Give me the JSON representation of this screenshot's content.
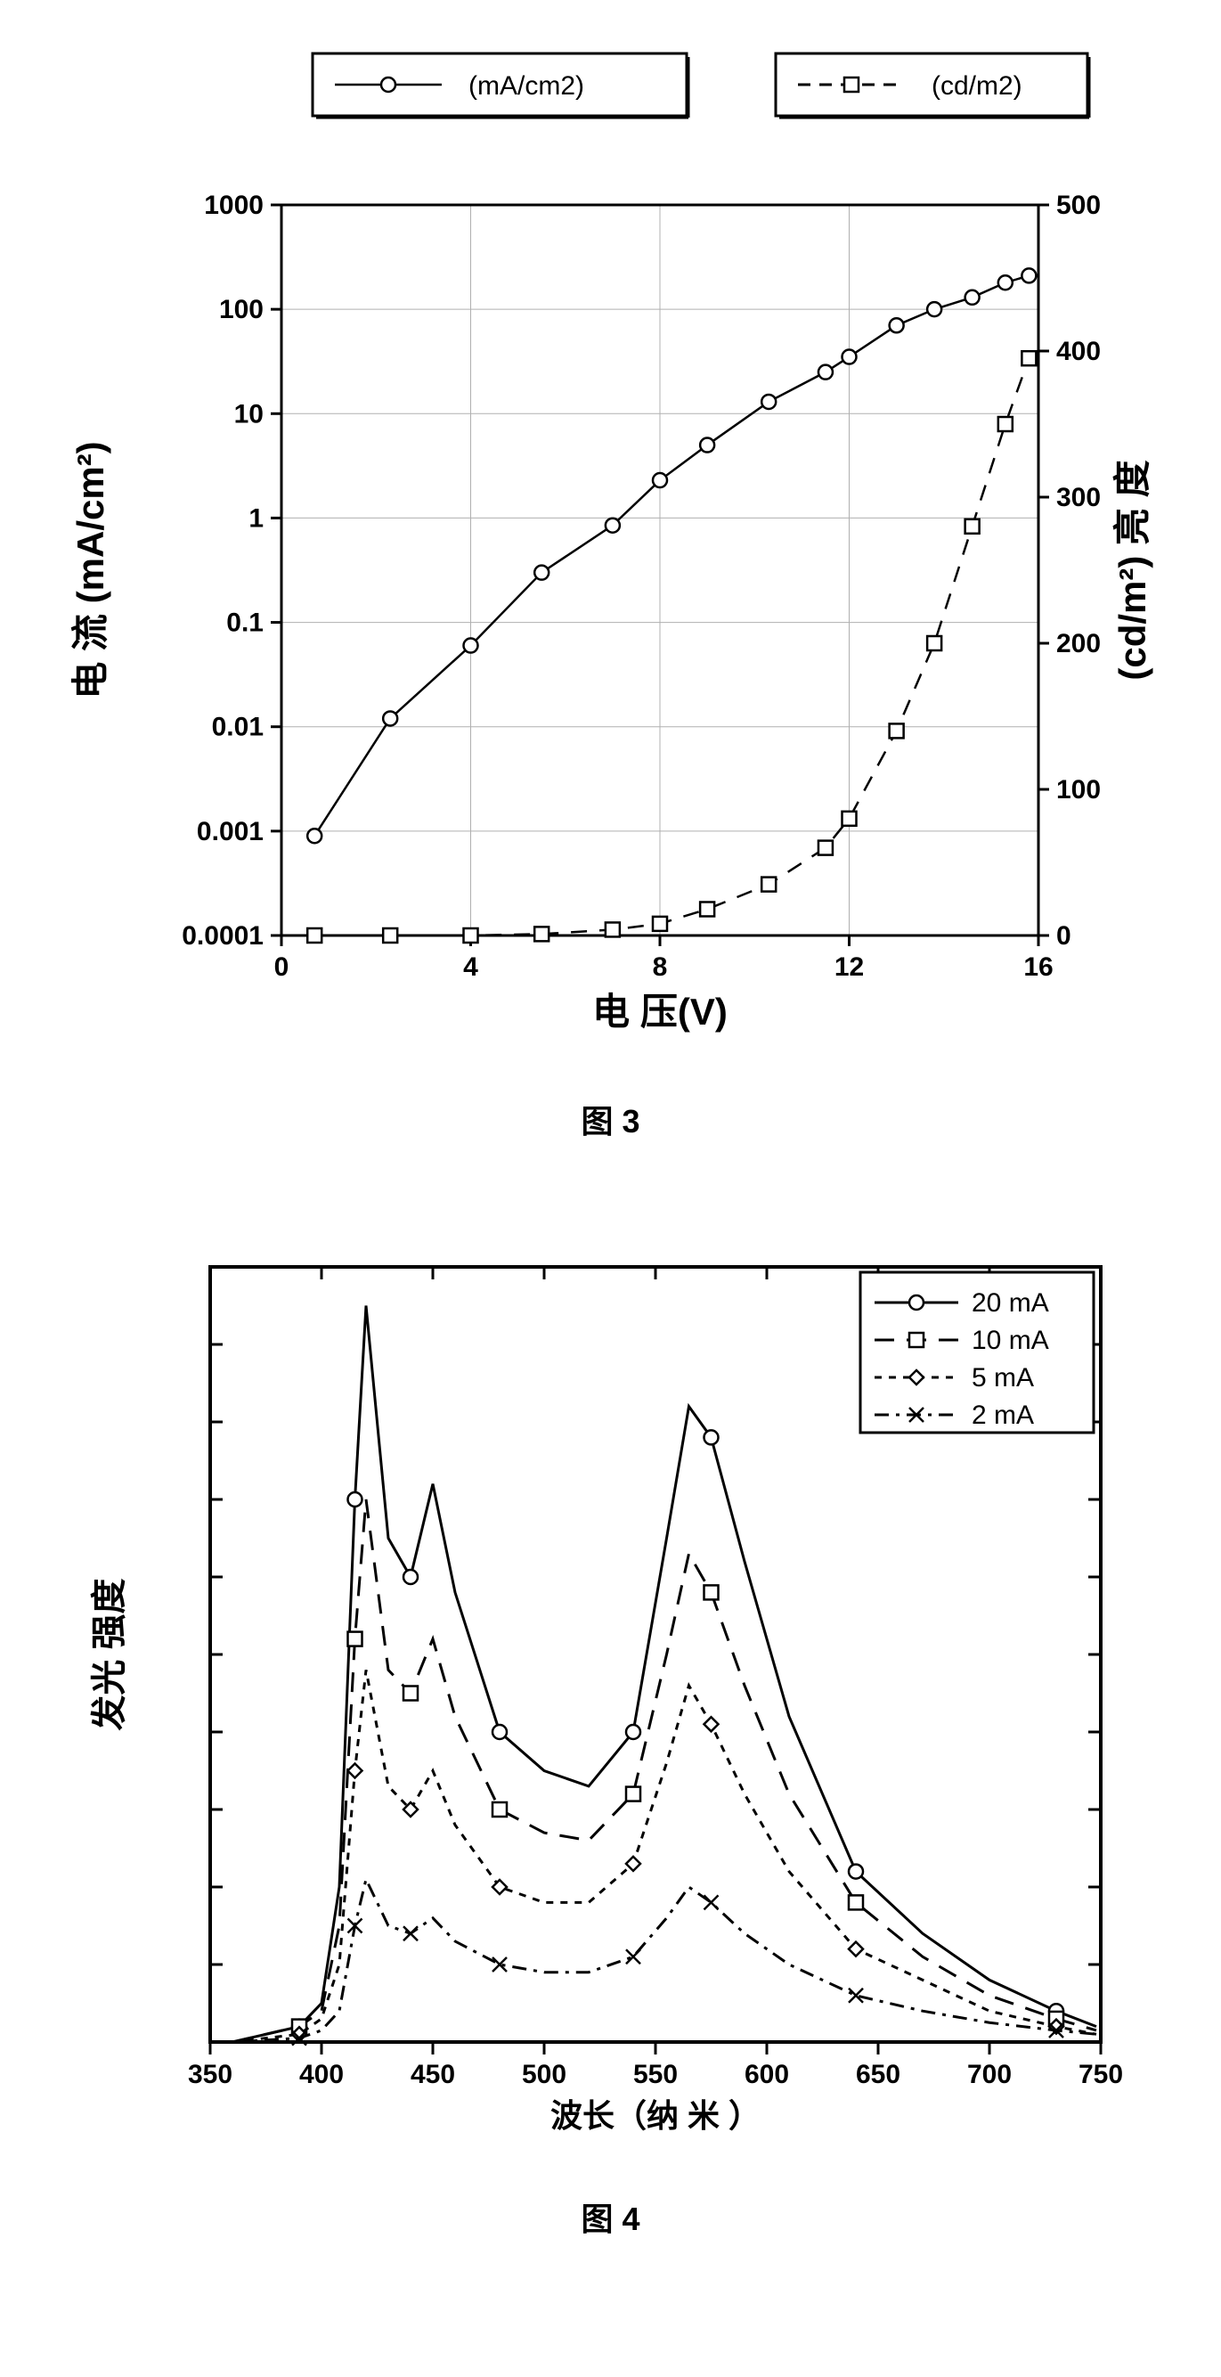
{
  "figure3": {
    "caption": "图 3",
    "type": "dual-axis-line",
    "background_color": "#ffffff",
    "plot_bg": "#ffffff",
    "border_color": "#000000",
    "grid_color": "#b0b0b0",
    "text_color": "#000000",
    "tick_fontsize": 30,
    "axis_label_fontsize": 42,
    "line_width": 2.5,
    "marker_size": 8,
    "x": {
      "label": "电  压(V)",
      "min": 0,
      "max": 16,
      "ticks": [
        0,
        4,
        8,
        12,
        16
      ],
      "scale": "linear"
    },
    "y_left": {
      "label": "电 流",
      "unit_label": "(mA/cm²)",
      "min": 0.0001,
      "max": 1000,
      "ticks": [
        0.0001,
        0.001,
        0.01,
        0.1,
        1,
        10,
        100,
        1000
      ],
      "tick_labels": [
        "0.0001",
        "0.001",
        "0.01",
        "0.1",
        "1",
        "10",
        "100",
        "1000"
      ],
      "scale": "log"
    },
    "y_right": {
      "label": "亮  度",
      "unit_label": "(cd/m²)",
      "min": 0,
      "max": 500,
      "ticks": [
        0,
        100,
        200,
        300,
        400,
        500
      ],
      "scale": "linear"
    },
    "legend": {
      "position": "top",
      "items": [
        {
          "label": "(mA/cm2)",
          "marker": "circle",
          "dash": "solid"
        },
        {
          "label": "(cd/m2)",
          "marker": "square",
          "dash": "dashed"
        }
      ]
    },
    "series": [
      {
        "name": "current_density",
        "axis": "left",
        "dash": "solid",
        "marker": "circle",
        "color": "#000000",
        "x": [
          0.7,
          2.3,
          4.0,
          5.5,
          7.0,
          8.0,
          9.0,
          10.3,
          11.5,
          12.0,
          13.0,
          13.8,
          14.6,
          15.3,
          15.8
        ],
        "y": [
          0.0009,
          0.012,
          0.06,
          0.3,
          0.85,
          2.3,
          5,
          13,
          25,
          35,
          70,
          100,
          130,
          180,
          210
        ]
      },
      {
        "name": "luminance",
        "axis": "right",
        "dash": "dashed",
        "marker": "square",
        "color": "#000000",
        "x": [
          0.7,
          2.3,
          4.0,
          5.5,
          7.0,
          8.0,
          9.0,
          10.3,
          11.5,
          12.0,
          13.0,
          13.8,
          14.6,
          15.3,
          15.8
        ],
        "y": [
          0,
          0,
          0,
          1,
          4,
          8,
          18,
          35,
          60,
          80,
          140,
          200,
          280,
          350,
          395
        ]
      }
    ]
  },
  "figure4": {
    "caption": "图 4",
    "type": "line",
    "background_color": "#ffffff",
    "plot_bg": "#ffffff",
    "border_color": "#000000",
    "grid_color": "none",
    "text_color": "#000000",
    "tick_fontsize": 30,
    "axis_label_fontsize": 36,
    "line_width": 3,
    "marker_size": 8,
    "x": {
      "label": "波长（纳 米 ）",
      "min": 350,
      "max": 750,
      "ticks": [
        350,
        400,
        450,
        500,
        550,
        600,
        650,
        700,
        750
      ],
      "scale": "linear"
    },
    "y": {
      "label": "发光  强度",
      "min": 0,
      "max": 1.0,
      "ticks": [],
      "scale": "linear"
    },
    "legend": {
      "position": "top-right",
      "items": [
        {
          "label": "20 mA",
          "marker": "circle",
          "dash": "solid"
        },
        {
          "label": "10 mA",
          "marker": "square",
          "dash": "longdash"
        },
        {
          "label": "5 mA",
          "marker": "diamond",
          "dash": "shortdash"
        },
        {
          "label": "2 mA",
          "marker": "cross",
          "dash": "dashdot"
        }
      ]
    },
    "series": [
      {
        "name": "20mA",
        "color": "#000000",
        "dash": "solid",
        "marker": "circle",
        "x": [
          360,
          390,
          400,
          408,
          415,
          420,
          430,
          440,
          450,
          460,
          480,
          500,
          520,
          540,
          555,
          565,
          575,
          590,
          610,
          640,
          670,
          700,
          730,
          748
        ],
        "y": [
          0.0,
          0.02,
          0.05,
          0.2,
          0.7,
          0.95,
          0.65,
          0.6,
          0.72,
          0.58,
          0.4,
          0.35,
          0.33,
          0.4,
          0.65,
          0.82,
          0.78,
          0.62,
          0.42,
          0.22,
          0.14,
          0.08,
          0.04,
          0.02
        ]
      },
      {
        "name": "10mA",
        "color": "#000000",
        "dash": "longdash",
        "marker": "square",
        "x": [
          360,
          390,
          400,
          408,
          415,
          420,
          430,
          440,
          450,
          460,
          480,
          500,
          520,
          540,
          555,
          565,
          575,
          590,
          610,
          640,
          670,
          700,
          730,
          748
        ],
        "y": [
          0.0,
          0.02,
          0.04,
          0.15,
          0.52,
          0.7,
          0.48,
          0.45,
          0.52,
          0.42,
          0.3,
          0.27,
          0.26,
          0.32,
          0.5,
          0.63,
          0.58,
          0.46,
          0.32,
          0.18,
          0.11,
          0.06,
          0.03,
          0.015
        ]
      },
      {
        "name": "5mA",
        "color": "#000000",
        "dash": "shortdash",
        "marker": "diamond",
        "x": [
          360,
          390,
          400,
          408,
          415,
          420,
          430,
          440,
          450,
          460,
          480,
          500,
          520,
          540,
          555,
          565,
          575,
          590,
          610,
          640,
          670,
          700,
          730,
          748
        ],
        "y": [
          0.0,
          0.01,
          0.03,
          0.1,
          0.35,
          0.48,
          0.33,
          0.3,
          0.35,
          0.28,
          0.2,
          0.18,
          0.18,
          0.23,
          0.36,
          0.46,
          0.41,
          0.32,
          0.22,
          0.12,
          0.08,
          0.04,
          0.02,
          0.01
        ]
      },
      {
        "name": "2mA",
        "color": "#000000",
        "dash": "dashdot",
        "marker": "cross",
        "x": [
          360,
          390,
          400,
          408,
          415,
          420,
          430,
          440,
          450,
          460,
          480,
          500,
          520,
          540,
          555,
          565,
          575,
          590,
          610,
          640,
          670,
          700,
          730,
          748
        ],
        "y": [
          0.0,
          0.005,
          0.015,
          0.04,
          0.15,
          0.21,
          0.15,
          0.14,
          0.16,
          0.13,
          0.1,
          0.09,
          0.09,
          0.11,
          0.16,
          0.2,
          0.18,
          0.14,
          0.1,
          0.06,
          0.04,
          0.025,
          0.015,
          0.01
        ]
      }
    ]
  }
}
